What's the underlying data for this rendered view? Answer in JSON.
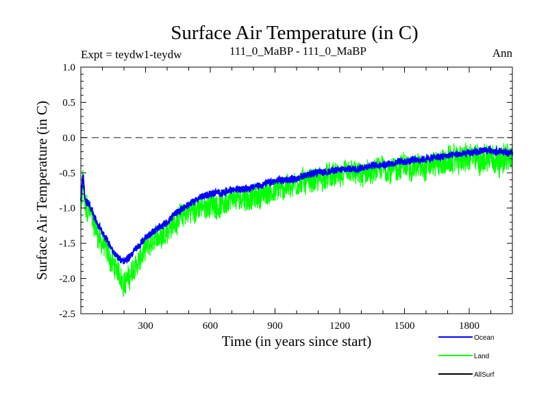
{
  "chart_data": {
    "type": "line",
    "title": "Surface Air Temperature (in C)",
    "subtitle_left": "Expt = teydw1-teydw",
    "subtitle_center": "111_0_MaBP - 111_0_MaBP",
    "subtitle_right": "Ann",
    "xlabel": "Time (in years since start)",
    "ylabel": "Surface Air Temperature (in C)",
    "xlim": [
      0,
      2000
    ],
    "ylim": [
      -2.5,
      1.0
    ],
    "x_ticks": [
      300,
      600,
      900,
      1200,
      1500,
      1800
    ],
    "x_tick_labels": [
      "300",
      "600",
      "900",
      "1200",
      "1500",
      "1800"
    ],
    "y_ticks": [
      -2.5,
      -2.0,
      -1.5,
      -1.0,
      -0.5,
      0.0,
      0.5,
      1.0
    ],
    "y_tick_labels": [
      "-2.5",
      "-2.0",
      "-1.5",
      "-1.0",
      "-0.5",
      "0.0",
      "0.5",
      "1.0"
    ],
    "reference_line": 0.0,
    "series": [
      {
        "name": "Land",
        "color": "#00ff00",
        "x": [
          0,
          10,
          20,
          40,
          60,
          80,
          100,
          120,
          140,
          160,
          180,
          200,
          220,
          250,
          280,
          300,
          330,
          360,
          400,
          450,
          500,
          550,
          600,
          650,
          700,
          750,
          800,
          850,
          900,
          950,
          1000,
          1050,
          1100,
          1150,
          1200,
          1250,
          1300,
          1350,
          1400,
          1450,
          1500,
          1550,
          1600,
          1650,
          1700,
          1750,
          1800,
          1850,
          1900,
          1950,
          2000
        ],
        "values": [
          -1.2,
          -0.6,
          -1.0,
          -1.05,
          -1.2,
          -1.4,
          -1.5,
          -1.6,
          -1.75,
          -1.85,
          -1.95,
          -2.05,
          -2.0,
          -1.85,
          -1.7,
          -1.6,
          -1.5,
          -1.4,
          -1.3,
          -1.15,
          -1.05,
          -1.0,
          -0.95,
          -0.95,
          -0.9,
          -0.85,
          -0.85,
          -0.8,
          -0.75,
          -0.7,
          -0.65,
          -0.6,
          -0.6,
          -0.55,
          -0.55,
          -0.5,
          -0.55,
          -0.5,
          -0.45,
          -0.45,
          -0.4,
          -0.4,
          -0.4,
          -0.35,
          -0.35,
          -0.3,
          -0.3,
          -0.3,
          -0.25,
          -0.3,
          -0.3
        ],
        "noise": [
          0.2,
          0.35,
          0.3,
          0.25,
          0.25,
          0.25,
          0.25,
          0.25,
          0.25,
          0.25,
          0.25,
          0.25,
          0.25,
          0.25,
          0.25,
          0.25,
          0.25,
          0.25,
          0.25,
          0.25,
          0.25,
          0.25,
          0.25,
          0.25,
          0.25,
          0.25,
          0.25,
          0.25,
          0.25,
          0.25,
          0.25,
          0.25,
          0.25,
          0.25,
          0.25,
          0.25,
          0.25,
          0.25,
          0.25,
          0.25,
          0.25,
          0.25,
          0.25,
          0.25,
          0.28,
          0.28,
          0.3,
          0.3,
          0.32,
          0.3,
          0.3
        ]
      },
      {
        "name": "Ocean",
        "color": "#0000ff",
        "x": [
          0,
          10,
          20,
          40,
          60,
          80,
          100,
          120,
          140,
          160,
          180,
          200,
          220,
          250,
          280,
          300,
          330,
          360,
          400,
          450,
          500,
          550,
          600,
          650,
          700,
          750,
          800,
          850,
          900,
          950,
          1000,
          1050,
          1100,
          1150,
          1200,
          1250,
          1300,
          1350,
          1400,
          1450,
          1500,
          1550,
          1600,
          1650,
          1700,
          1750,
          1800,
          1850,
          1900,
          1950,
          2000
        ],
        "values": [
          -0.9,
          -0.5,
          -0.9,
          -0.95,
          -1.1,
          -1.25,
          -1.35,
          -1.45,
          -1.55,
          -1.65,
          -1.72,
          -1.75,
          -1.7,
          -1.6,
          -1.5,
          -1.42,
          -1.35,
          -1.28,
          -1.2,
          -1.05,
          -0.95,
          -0.85,
          -0.8,
          -0.78,
          -0.75,
          -0.72,
          -0.7,
          -0.66,
          -0.62,
          -0.6,
          -0.58,
          -0.52,
          -0.5,
          -0.48,
          -0.46,
          -0.44,
          -0.42,
          -0.4,
          -0.38,
          -0.36,
          -0.34,
          -0.32,
          -0.3,
          -0.28,
          -0.26,
          -0.24,
          -0.22,
          -0.2,
          -0.18,
          -0.2,
          -0.22
        ],
        "noise": [
          0.06,
          0.1,
          0.08,
          0.07,
          0.07,
          0.07,
          0.07,
          0.07,
          0.07,
          0.07,
          0.07,
          0.07,
          0.07,
          0.07,
          0.07,
          0.07,
          0.07,
          0.07,
          0.07,
          0.07,
          0.07,
          0.07,
          0.07,
          0.07,
          0.07,
          0.07,
          0.07,
          0.07,
          0.07,
          0.07,
          0.07,
          0.07,
          0.07,
          0.07,
          0.07,
          0.07,
          0.07,
          0.07,
          0.07,
          0.07,
          0.07,
          0.07,
          0.07,
          0.07,
          0.07,
          0.07,
          0.07,
          0.07,
          0.07,
          0.07,
          0.07
        ]
      },
      {
        "name": "AllSurf",
        "color": "#000000",
        "x": [],
        "values": [],
        "noise": []
      }
    ],
    "legend": {
      "placement": "bottom-right",
      "entries": [
        "Ocean",
        "Land",
        "AllSurf"
      ]
    }
  }
}
